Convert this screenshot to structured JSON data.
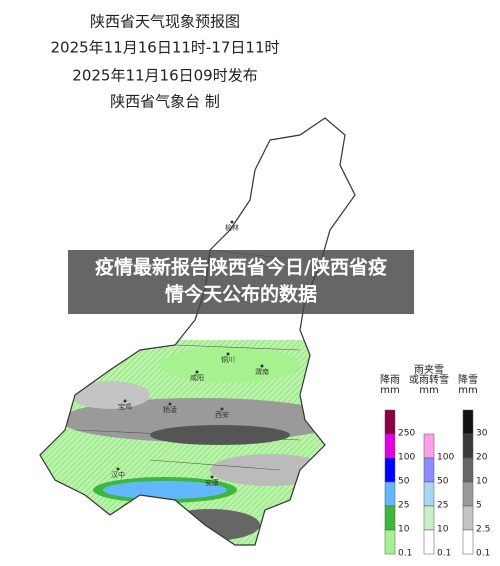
{
  "header": {
    "lines": [
      "陕西省天气现象预报图",
      "2025年11月16日11时-17日11时",
      "2025年11月16日09时发布",
      "陕西省气象台 制"
    ]
  },
  "banner": {
    "lines": [
      "疫情最新报告陕西省今日/陕西省疫",
      "情今天公布的数据"
    ]
  },
  "map": {
    "labels": [
      "榆林",
      "铜川",
      "渭南",
      "咸阳",
      "杨凌",
      "宝鸡",
      "西安",
      "汉中",
      "安康"
    ]
  },
  "legend": {
    "columns": [
      {
        "title_lines": [
          "降雨",
          "mm"
        ],
        "ticks": [
          "250",
          "100",
          "50",
          "25",
          "10",
          "0.1"
        ],
        "colors": [
          "#8b0045",
          "#e600e6",
          "#0000ff",
          "#61b8ff",
          "#3db83d",
          "#a6f28f"
        ]
      },
      {
        "title_lines": [
          "雨夹雪",
          "或雨转雪",
          "mm"
        ],
        "ticks": [
          "100",
          "50",
          "25",
          "10",
          "0.1"
        ],
        "colors": [
          "#ff9ee8",
          "#8c8cff",
          "#a8d8f0",
          "#c8f0c8",
          "#ffffff"
        ]
      },
      {
        "title_lines": [
          "降雪",
          "mm"
        ],
        "ticks": [
          "30",
          "20",
          "10",
          "5",
          "2.5",
          "0.1"
        ],
        "colors": [
          "#111111",
          "#3a3a3a",
          "#666666",
          "#999999",
          "#c4c4c4",
          "#ffffff"
        ]
      }
    ]
  }
}
